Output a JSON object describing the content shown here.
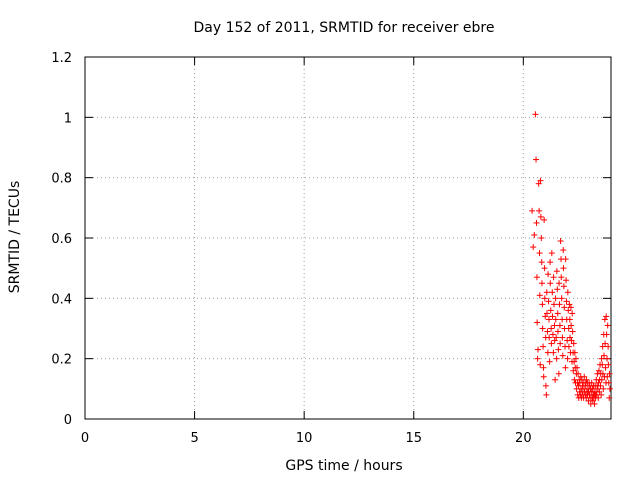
{
  "chart_data": {
    "type": "scatter",
    "title": "Day 152 of 2011, SRMTID for receiver ebre",
    "xlabel": "GPS time / hours",
    "ylabel": "SRMTID / TECUs",
    "xlim": [
      0,
      24
    ],
    "ylim": [
      0,
      1.2
    ],
    "xticks": [
      0,
      5,
      10,
      15,
      20
    ],
    "yticks": [
      0,
      0.2,
      0.4,
      0.6,
      0.8,
      1,
      1.2
    ],
    "ytick_labels": [
      "0",
      "0.2",
      "0.4",
      "0.6",
      "0.8",
      "1",
      "1.2"
    ],
    "grid": true,
    "marker": "+",
    "series": [
      {
        "name": "SRMTID",
        "color": "#ff0000",
        "points": [
          [
            20.4,
            0.69
          ],
          [
            20.45,
            0.57
          ],
          [
            20.5,
            0.61
          ],
          [
            20.55,
            1.01
          ],
          [
            20.58,
            0.86
          ],
          [
            20.6,
            0.65
          ],
          [
            20.62,
            0.47
          ],
          [
            20.63,
            0.32
          ],
          [
            20.65,
            0.2
          ],
          [
            20.67,
            0.23
          ],
          [
            20.7,
            0.78
          ],
          [
            20.72,
            0.69
          ],
          [
            20.74,
            0.55
          ],
          [
            20.75,
            0.41
          ],
          [
            20.77,
            0.18
          ],
          [
            20.78,
            0.79
          ],
          [
            20.8,
            0.67
          ],
          [
            20.82,
            0.6
          ],
          [
            20.84,
            0.52
          ],
          [
            20.85,
            0.45
          ],
          [
            20.87,
            0.38
          ],
          [
            20.88,
            0.3
          ],
          [
            20.9,
            0.24
          ],
          [
            20.92,
            0.17
          ],
          [
            20.93,
            0.14
          ],
          [
            20.95,
            0.66
          ],
          [
            20.97,
            0.5
          ],
          [
            20.98,
            0.4
          ],
          [
            21.0,
            0.34
          ],
          [
            21.02,
            0.27
          ],
          [
            21.03,
            0.11
          ],
          [
            21.05,
            0.08
          ],
          [
            21.07,
            0.42
          ],
          [
            21.08,
            0.35
          ],
          [
            21.1,
            0.29
          ],
          [
            21.12,
            0.22
          ],
          [
            21.13,
            0.48
          ],
          [
            21.15,
            0.39
          ],
          [
            21.17,
            0.33
          ],
          [
            21.18,
            0.27
          ],
          [
            21.2,
            0.19
          ],
          [
            21.22,
            0.52
          ],
          [
            21.23,
            0.45
          ],
          [
            21.25,
            0.36
          ],
          [
            21.27,
            0.3
          ],
          [
            21.28,
            0.25
          ],
          [
            21.3,
            0.55
          ],
          [
            21.32,
            0.42
          ],
          [
            21.33,
            0.34
          ],
          [
            21.35,
            0.28
          ],
          [
            21.37,
            0.22
          ],
          [
            21.38,
            0.47
          ],
          [
            21.4,
            0.38
          ],
          [
            21.42,
            0.31
          ],
          [
            21.43,
            0.26
          ],
          [
            21.45,
            0.13
          ],
          [
            21.47,
            0.4
          ],
          [
            21.48,
            0.33
          ],
          [
            21.5,
            0.27
          ],
          [
            21.52,
            0.2
          ],
          [
            21.53,
            0.49
          ],
          [
            21.55,
            0.43
          ],
          [
            21.57,
            0.35
          ],
          [
            21.58,
            0.29
          ],
          [
            21.6,
            0.23
          ],
          [
            21.62,
            0.15
          ],
          [
            21.63,
            0.45
          ],
          [
            21.65,
            0.38
          ],
          [
            21.67,
            0.31
          ],
          [
            21.68,
            0.25
          ],
          [
            21.7,
            0.59
          ],
          [
            21.72,
            0.53
          ],
          [
            21.73,
            0.47
          ],
          [
            21.75,
            0.4
          ],
          [
            21.77,
            0.33
          ],
          [
            21.78,
            0.27
          ],
          [
            21.8,
            0.21
          ],
          [
            21.82,
            0.56
          ],
          [
            21.83,
            0.5
          ],
          [
            21.85,
            0.44
          ],
          [
            21.87,
            0.37
          ],
          [
            21.88,
            0.3
          ],
          [
            21.9,
            0.24
          ],
          [
            21.92,
            0.17
          ],
          [
            21.93,
            0.53
          ],
          [
            21.95,
            0.46
          ],
          [
            21.97,
            0.39
          ],
          [
            21.98,
            0.33
          ],
          [
            22.0,
            0.26
          ],
          [
            22.02,
            0.2
          ],
          [
            22.03,
            0.42
          ],
          [
            22.05,
            0.36
          ],
          [
            22.07,
            0.3
          ],
          [
            22.08,
            0.24
          ],
          [
            22.1,
            0.38
          ],
          [
            22.12,
            0.33
          ],
          [
            22.13,
            0.27
          ],
          [
            22.15,
            0.22
          ],
          [
            22.17,
            0.37
          ],
          [
            22.18,
            0.31
          ],
          [
            22.2,
            0.26
          ],
          [
            22.22,
            0.19
          ],
          [
            22.23,
            0.35
          ],
          [
            22.25,
            0.29
          ],
          [
            22.27,
            0.22
          ],
          [
            22.28,
            0.16
          ],
          [
            22.3,
            0.25
          ],
          [
            22.32,
            0.19
          ],
          [
            22.33,
            0.13
          ],
          [
            22.35,
            0.22
          ],
          [
            22.37,
            0.17
          ],
          [
            22.38,
            0.12
          ],
          [
            22.4,
            0.2
          ],
          [
            22.42,
            0.15
          ],
          [
            22.43,
            0.1
          ],
          [
            22.45,
            0.17
          ],
          [
            22.47,
            0.12
          ],
          [
            22.48,
            0.08
          ],
          [
            22.5,
            0.15
          ],
          [
            22.52,
            0.11
          ],
          [
            22.53,
            0.07
          ],
          [
            22.55,
            0.13
          ],
          [
            22.57,
            0.09
          ],
          [
            22.58,
            0.12
          ],
          [
            22.6,
            0.08
          ],
          [
            22.62,
            0.14
          ],
          [
            22.63,
            0.1
          ],
          [
            22.65,
            0.07
          ],
          [
            22.67,
            0.13
          ],
          [
            22.68,
            0.09
          ],
          [
            22.7,
            0.11
          ],
          [
            22.72,
            0.08
          ],
          [
            22.73,
            0.12
          ],
          [
            22.75,
            0.07
          ],
          [
            22.77,
            0.1
          ],
          [
            22.78,
            0.14
          ],
          [
            22.8,
            0.09
          ],
          [
            22.82,
            0.12
          ],
          [
            22.83,
            0.08
          ],
          [
            22.85,
            0.11
          ],
          [
            22.87,
            0.07
          ],
          [
            22.88,
            0.13
          ],
          [
            22.9,
            0.09
          ],
          [
            22.92,
            0.12
          ],
          [
            22.93,
            0.08
          ],
          [
            22.95,
            0.1
          ],
          [
            22.97,
            0.06
          ],
          [
            22.98,
            0.09
          ],
          [
            23.0,
            0.12
          ],
          [
            23.02,
            0.08
          ],
          [
            23.03,
            0.11
          ],
          [
            23.05,
            0.07
          ],
          [
            23.07,
            0.1
          ],
          [
            23.08,
            0.05
          ],
          [
            23.1,
            0.09
          ],
          [
            23.12,
            0.12
          ],
          [
            23.13,
            0.07
          ],
          [
            23.15,
            0.1
          ],
          [
            23.17,
            0.06
          ],
          [
            23.18,
            0.08
          ],
          [
            23.2,
            0.11
          ],
          [
            23.22,
            0.07
          ],
          [
            23.23,
            0.09
          ],
          [
            23.25,
            0.05
          ],
          [
            23.27,
            0.08
          ],
          [
            23.28,
            0.11
          ],
          [
            23.3,
            0.07
          ],
          [
            23.32,
            0.09
          ],
          [
            23.33,
            0.13
          ],
          [
            23.35,
            0.08
          ],
          [
            23.37,
            0.11
          ],
          [
            23.38,
            0.15
          ],
          [
            23.4,
            0.1
          ],
          [
            23.42,
            0.07
          ],
          [
            23.43,
            0.12
          ],
          [
            23.45,
            0.16
          ],
          [
            23.47,
            0.09
          ],
          [
            23.48,
            0.13
          ],
          [
            23.5,
            0.18
          ],
          [
            23.52,
            0.11
          ],
          [
            23.53,
            0.15
          ],
          [
            23.55,
            0.08
          ],
          [
            23.57,
            0.2
          ],
          [
            23.58,
            0.13
          ],
          [
            23.6,
            0.18
          ],
          [
            23.62,
            0.24
          ],
          [
            23.63,
            0.15
          ],
          [
            23.65,
            0.1
          ],
          [
            23.67,
            0.28
          ],
          [
            23.68,
            0.21
          ],
          [
            23.7,
            0.14
          ],
          [
            23.72,
            0.33
          ],
          [
            23.73,
            0.25
          ],
          [
            23.75,
            0.17
          ],
          [
            23.77,
            0.12
          ],
          [
            23.78,
            0.34
          ],
          [
            23.8,
            0.28
          ],
          [
            23.82,
            0.2
          ],
          [
            23.83,
            0.14
          ],
          [
            23.85,
            0.31
          ],
          [
            23.87,
            0.24
          ],
          [
            23.88,
            0.18
          ],
          [
            23.9,
            0.12
          ],
          [
            23.92,
            0.07
          ],
          [
            23.93,
            0.15
          ],
          [
            23.95,
            0.1
          ]
        ]
      }
    ]
  }
}
